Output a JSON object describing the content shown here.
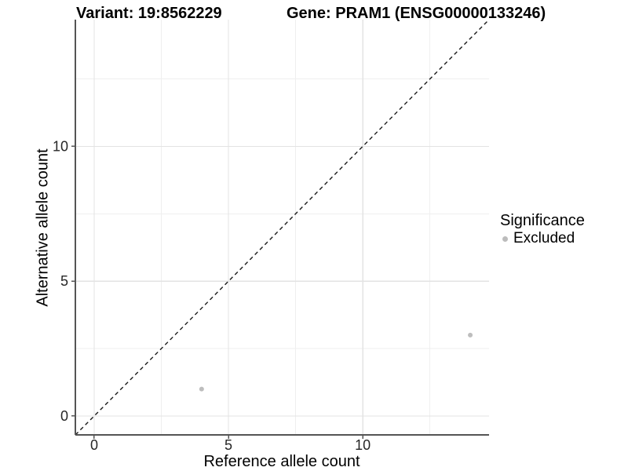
{
  "chart_data": {
    "type": "scatter",
    "title_left": "Variant: 19:8562229",
    "title_right": "Gene: PRAM1 (ENSG00000133246)",
    "xlabel": "Reference allele count",
    "ylabel": "Alternative allele count",
    "xlim": [
      -0.7,
      14.7
    ],
    "ylim": [
      -0.7,
      14.7
    ],
    "xticks": [
      0,
      5,
      10
    ],
    "yticks": [
      0,
      5,
      10
    ],
    "x_minor_ticks": [
      2.5,
      7.5,
      12.5
    ],
    "y_minor_ticks": [
      2.5,
      7.5,
      12.5
    ],
    "grid": true,
    "identity_line": {
      "style": "dashed",
      "from": -0.7,
      "to": 14.7
    },
    "series": [
      {
        "name": "Excluded",
        "color": "#bdbdbd",
        "points": [
          {
            "x": 4,
            "y": 1
          },
          {
            "x": 14,
            "y": 3
          }
        ]
      }
    ],
    "legend": {
      "title": "Significance",
      "position": "right",
      "items": [
        {
          "label": "Excluded",
          "color": "#bcbcbc"
        }
      ]
    },
    "colors": {
      "background": "#ffffff",
      "grid_major": "#e3e3e3",
      "grid_minor": "#efefef",
      "axis_line": "#555555",
      "tick_mark": "#555555",
      "tick_text": "#262626",
      "identity_line": "#1a1a1a",
      "point": "#bdbdbd",
      "title_text": "#000000"
    }
  }
}
